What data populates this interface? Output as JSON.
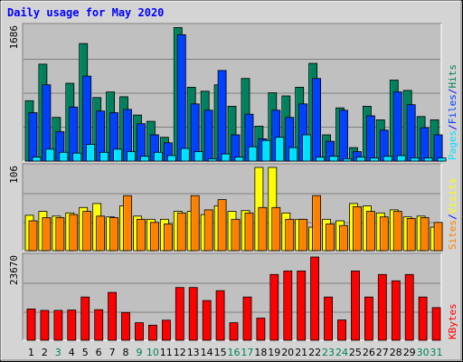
{
  "colors": {
    "title": "#0000ff",
    "hits": "#00805c",
    "files": "#0040ff",
    "pages": "#00e0ff",
    "visits": "#ffff00",
    "sites": "#ff8000",
    "kbytes": "#ff0000",
    "weekday": "#000000",
    "weekend": "#00805c",
    "sep": "#0000ff",
    "panel_bg": "#c0c0c0",
    "frame_bg": "#d4d4d4"
  },
  "chart_data": [
    {
      "type": "bar",
      "title": "Daily usage for May 2020",
      "ymax_label": "1686",
      "legend_labels": [
        "Pages",
        "Files",
        "Hits"
      ],
      "categories": [
        "1",
        "2",
        "3",
        "4",
        "5",
        "6",
        "7",
        "8",
        "9",
        "10",
        "11",
        "12",
        "13",
        "14",
        "15",
        "16",
        "17",
        "18",
        "19",
        "20",
        "21",
        "22",
        "23",
        "24",
        "25",
        "26",
        "27",
        "28",
        "29",
        "30",
        "31"
      ],
      "weekend_days": [
        "3",
        "9",
        "10",
        "16",
        "17",
        "23",
        "24",
        "30",
        "31"
      ],
      "ylim": [
        0,
        1686
      ],
      "series": [
        {
          "name": "Hits",
          "values": [
            760,
            1220,
            550,
            980,
            1480,
            800,
            870,
            810,
            580,
            500,
            300,
            1680,
            930,
            880,
            960,
            690,
            1040,
            440,
            860,
            820,
            930,
            1230,
            330,
            670,
            170,
            690,
            520,
            1020,
            890,
            560,
            520
          ]
        },
        {
          "name": "Files",
          "values": [
            610,
            960,
            370,
            680,
            1070,
            630,
            610,
            650,
            470,
            330,
            230,
            1590,
            720,
            640,
            1140,
            330,
            590,
            280,
            640,
            550,
            720,
            1040,
            250,
            640,
            120,
            570,
            390,
            870,
            710,
            420,
            330
          ]
        },
        {
          "name": "Pages",
          "values": [
            50,
            150,
            110,
            100,
            210,
            110,
            150,
            120,
            60,
            110,
            70,
            160,
            120,
            30,
            90,
            50,
            180,
            260,
            300,
            170,
            330,
            50,
            60,
            30,
            50,
            40,
            60,
            70,
            40,
            40,
            40
          ]
        }
      ]
    },
    {
      "type": "bar",
      "ymax_label": "106",
      "legend_labels": [
        "Sites",
        "Visits"
      ],
      "ylim": [
        0,
        106
      ],
      "series": [
        {
          "name": "Visits",
          "values": [
            45,
            50,
            44,
            48,
            55,
            60,
            43,
            57,
            44,
            40,
            40,
            50,
            50,
            46,
            57,
            50,
            51,
            106,
            106,
            48,
            40,
            30,
            40,
            38,
            60,
            57,
            48,
            52,
            43,
            44,
            30
          ]
        },
        {
          "name": "Sites",
          "values": [
            38,
            42,
            42,
            46,
            50,
            44,
            42,
            70,
            40,
            36,
            34,
            48,
            70,
            52,
            65,
            40,
            48,
            55,
            55,
            40,
            40,
            70,
            34,
            32,
            56,
            50,
            43,
            50,
            41,
            42,
            36
          ]
        }
      ]
    },
    {
      "type": "bar",
      "ymax_label": "23670",
      "legend_labels": [
        "KBytes"
      ],
      "ylim": [
        0,
        23670
      ],
      "series": [
        {
          "name": "KBytes",
          "values": [
            8900,
            8500,
            8500,
            8600,
            12300,
            8700,
            13600,
            7900,
            5000,
            4300,
            5700,
            15000,
            15000,
            11300,
            14100,
            5000,
            12300,
            6300,
            18700,
            19700,
            19700,
            23670,
            12300,
            5800,
            19700,
            12300,
            18700,
            16900,
            18700,
            12300,
            9300
          ]
        }
      ]
    }
  ]
}
